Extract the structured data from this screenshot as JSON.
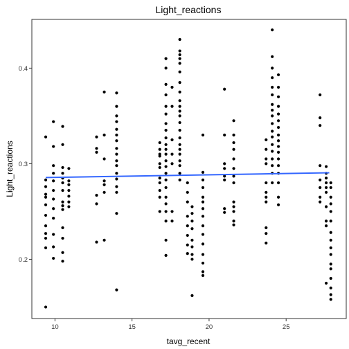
{
  "chart_data": {
    "type": "scatter",
    "title": "Light_reactions",
    "xlabel": "tavg_recent",
    "ylabel": "Light_reactions",
    "xlim": [
      8.5,
      28.9
    ],
    "ylim": [
      0.138,
      0.451
    ],
    "x_ticks": [
      {
        "value": 10,
        "label": "10"
      },
      {
        "value": 15,
        "label": "15"
      },
      {
        "value": 20,
        "label": "20"
      },
      {
        "value": 25,
        "label": "25"
      }
    ],
    "y_ticks": [
      {
        "value": 0.2,
        "label": "0.2"
      },
      {
        "value": 0.3,
        "label": "0.3"
      },
      {
        "value": 0.4,
        "label": "0.4"
      }
    ],
    "grid": false,
    "point_color": "#000000",
    "line_color": "#3366FF",
    "trend_line": {
      "x": [
        9.4,
        27.8
      ],
      "y": [
        0.2855,
        0.2905
      ]
    },
    "series": [
      {
        "points": [
          [
            9.4,
            0.15
          ],
          [
            9.4,
            0.212
          ],
          [
            9.4,
            0.222
          ],
          [
            9.4,
            0.227
          ],
          [
            9.4,
            0.235
          ],
          [
            9.4,
            0.246
          ],
          [
            9.4,
            0.257
          ],
          [
            9.4,
            0.265
          ],
          [
            9.4,
            0.268
          ],
          [
            9.4,
            0.276
          ],
          [
            9.4,
            0.283
          ],
          [
            9.4,
            0.328
          ],
          [
            9.9,
            0.201
          ],
          [
            9.9,
            0.213
          ],
          [
            9.9,
            0.226
          ],
          [
            9.9,
            0.243
          ],
          [
            9.9,
            0.253
          ],
          [
            9.9,
            0.263
          ],
          [
            9.9,
            0.272
          ],
          [
            9.9,
            0.282
          ],
          [
            9.9,
            0.29
          ],
          [
            9.9,
            0.298
          ],
          [
            9.9,
            0.318
          ],
          [
            9.9,
            0.344
          ],
          [
            10.5,
            0.198
          ],
          [
            10.5,
            0.207
          ],
          [
            10.5,
            0.222
          ],
          [
            10.5,
            0.233
          ],
          [
            10.5,
            0.252
          ],
          [
            10.5,
            0.256
          ],
          [
            10.5,
            0.26
          ],
          [
            10.5,
            0.272
          ],
          [
            10.5,
            0.28
          ],
          [
            10.5,
            0.285
          ],
          [
            10.5,
            0.29
          ],
          [
            10.5,
            0.296
          ],
          [
            10.5,
            0.32
          ],
          [
            10.5,
            0.339
          ],
          [
            10.9,
            0.255
          ],
          [
            10.9,
            0.26
          ],
          [
            10.9,
            0.266
          ],
          [
            10.9,
            0.272
          ],
          [
            10.9,
            0.278
          ],
          [
            10.9,
            0.282
          ],
          [
            10.9,
            0.295
          ],
          [
            12.7,
            0.218
          ],
          [
            12.7,
            0.258
          ],
          [
            12.7,
            0.267
          ],
          [
            12.7,
            0.312
          ],
          [
            12.7,
            0.316
          ],
          [
            12.7,
            0.328
          ],
          [
            13.2,
            0.22
          ],
          [
            13.2,
            0.27
          ],
          [
            13.2,
            0.278
          ],
          [
            13.2,
            0.282
          ],
          [
            13.2,
            0.305
          ],
          [
            13.2,
            0.33
          ],
          [
            13.2,
            0.375
          ],
          [
            14,
            0.168
          ],
          [
            14,
            0.248
          ],
          [
            14,
            0.27
          ],
          [
            14,
            0.276
          ],
          [
            14,
            0.284
          ],
          [
            14,
            0.29
          ],
          [
            14,
            0.298
          ],
          [
            14,
            0.303
          ],
          [
            14,
            0.31
          ],
          [
            14,
            0.316
          ],
          [
            14,
            0.324
          ],
          [
            14,
            0.33
          ],
          [
            14,
            0.336
          ],
          [
            14,
            0.344
          ],
          [
            14,
            0.35
          ],
          [
            14,
            0.36
          ],
          [
            14,
            0.374
          ],
          [
            16.8,
            0.25
          ],
          [
            16.8,
            0.265
          ],
          [
            16.8,
            0.272
          ],
          [
            16.8,
            0.28
          ],
          [
            16.8,
            0.285
          ],
          [
            16.8,
            0.296
          ],
          [
            16.8,
            0.3
          ],
          [
            16.8,
            0.308
          ],
          [
            16.8,
            0.315
          ],
          [
            16.8,
            0.322
          ],
          [
            16.8,
            0.31
          ],
          [
            17.2,
            0.204
          ],
          [
            17.2,
            0.22
          ],
          [
            17.2,
            0.24
          ],
          [
            17.2,
            0.25
          ],
          [
            17.2,
            0.258
          ],
          [
            17.2,
            0.265
          ],
          [
            17.2,
            0.275
          ],
          [
            17.2,
            0.283
          ],
          [
            17.2,
            0.29
          ],
          [
            17.2,
            0.297
          ],
          [
            17.2,
            0.303
          ],
          [
            17.2,
            0.31
          ],
          [
            17.2,
            0.315
          ],
          [
            17.2,
            0.32
          ],
          [
            17.2,
            0.327
          ],
          [
            17.2,
            0.335
          ],
          [
            17.2,
            0.342
          ],
          [
            17.2,
            0.352
          ],
          [
            17.2,
            0.36
          ],
          [
            17.2,
            0.372
          ],
          [
            17.2,
            0.383
          ],
          [
            17.2,
            0.4
          ],
          [
            17.2,
            0.41
          ],
          [
            17.6,
            0.24
          ],
          [
            17.6,
            0.25
          ],
          [
            17.6,
            0.3
          ],
          [
            17.6,
            0.31
          ],
          [
            17.6,
            0.325
          ],
          [
            17.6,
            0.36
          ],
          [
            17.6,
            0.38
          ],
          [
            18.1,
            0.283
          ],
          [
            18.1,
            0.29
          ],
          [
            18.1,
            0.298
          ],
          [
            18.1,
            0.303
          ],
          [
            18.1,
            0.31
          ],
          [
            18.1,
            0.315
          ],
          [
            18.1,
            0.32
          ],
          [
            18.1,
            0.327
          ],
          [
            18.1,
            0.335
          ],
          [
            18.1,
            0.343
          ],
          [
            18.1,
            0.35
          ],
          [
            18.1,
            0.355
          ],
          [
            18.1,
            0.36
          ],
          [
            18.1,
            0.366
          ],
          [
            18.1,
            0.375
          ],
          [
            18.1,
            0.385
          ],
          [
            18.1,
            0.396
          ],
          [
            18.1,
            0.405
          ],
          [
            18.1,
            0.41
          ],
          [
            18.1,
            0.414
          ],
          [
            18.1,
            0.418
          ],
          [
            18.1,
            0.43
          ],
          [
            18.6,
            0.206
          ],
          [
            18.6,
            0.215
          ],
          [
            18.6,
            0.225
          ],
          [
            18.6,
            0.235
          ],
          [
            18.6,
            0.245
          ],
          [
            18.6,
            0.26
          ],
          [
            18.6,
            0.27
          ],
          [
            18.6,
            0.28
          ],
          [
            18.9,
            0.162
          ],
          [
            18.9,
            0.2
          ],
          [
            18.9,
            0.205
          ],
          [
            18.9,
            0.213
          ],
          [
            18.9,
            0.22
          ],
          [
            18.9,
            0.232
          ],
          [
            18.9,
            0.24
          ],
          [
            18.9,
            0.248
          ],
          [
            18.9,
            0.255
          ],
          [
            19.6,
            0.183
          ],
          [
            19.6,
            0.187
          ],
          [
            19.6,
            0.196
          ],
          [
            19.6,
            0.205
          ],
          [
            19.6,
            0.216
          ],
          [
            19.6,
            0.226
          ],
          [
            19.6,
            0.235
          ],
          [
            19.6,
            0.245
          ],
          [
            19.6,
            0.253
          ],
          [
            19.6,
            0.26
          ],
          [
            19.6,
            0.265
          ],
          [
            19.6,
            0.275
          ],
          [
            19.6,
            0.283
          ],
          [
            19.6,
            0.291
          ],
          [
            19.6,
            0.33
          ],
          [
            21,
            0.249
          ],
          [
            21,
            0.253
          ],
          [
            21,
            0.283
          ],
          [
            21,
            0.287
          ],
          [
            21,
            0.295
          ],
          [
            21,
            0.3
          ],
          [
            21,
            0.33
          ],
          [
            21,
            0.378
          ],
          [
            21.6,
            0.236
          ],
          [
            21.6,
            0.24
          ],
          [
            21.6,
            0.25
          ],
          [
            21.6,
            0.255
          ],
          [
            21.6,
            0.26
          ],
          [
            21.6,
            0.28
          ],
          [
            21.6,
            0.287
          ],
          [
            21.6,
            0.295
          ],
          [
            21.6,
            0.305
          ],
          [
            21.6,
            0.315
          ],
          [
            21.6,
            0.322
          ],
          [
            21.6,
            0.33
          ],
          [
            21.6,
            0.345
          ],
          [
            23.7,
            0.217
          ],
          [
            23.7,
            0.227
          ],
          [
            23.7,
            0.233
          ],
          [
            23.7,
            0.26
          ],
          [
            23.7,
            0.265
          ],
          [
            23.7,
            0.27
          ],
          [
            23.7,
            0.28
          ],
          [
            23.7,
            0.3
          ],
          [
            23.7,
            0.305
          ],
          [
            23.7,
            0.315
          ],
          [
            23.7,
            0.325
          ],
          [
            24.1,
            0.28
          ],
          [
            24.1,
            0.29
          ],
          [
            24.1,
            0.298
          ],
          [
            24.1,
            0.305
          ],
          [
            24.1,
            0.313
          ],
          [
            24.1,
            0.32
          ],
          [
            24.1,
            0.328
          ],
          [
            24.1,
            0.334
          ],
          [
            24.1,
            0.342
          ],
          [
            24.1,
            0.35
          ],
          [
            24.1,
            0.356
          ],
          [
            24.1,
            0.362
          ],
          [
            24.1,
            0.372
          ],
          [
            24.1,
            0.38
          ],
          [
            24.1,
            0.39
          ],
          [
            24.1,
            0.4
          ],
          [
            24.1,
            0.412
          ],
          [
            24.1,
            0.44
          ],
          [
            24.5,
            0.257
          ],
          [
            24.5,
            0.265
          ],
          [
            24.5,
            0.28
          ],
          [
            24.5,
            0.29
          ],
          [
            24.5,
            0.298
          ],
          [
            24.5,
            0.305
          ],
          [
            24.5,
            0.312
          ],
          [
            24.5,
            0.318
          ],
          [
            24.5,
            0.324
          ],
          [
            24.5,
            0.33
          ],
          [
            24.5,
            0.338
          ],
          [
            24.5,
            0.345
          ],
          [
            24.5,
            0.352
          ],
          [
            24.5,
            0.36
          ],
          [
            24.5,
            0.37
          ],
          [
            24.5,
            0.38
          ],
          [
            24.5,
            0.393
          ],
          [
            27.2,
            0.26
          ],
          [
            27.2,
            0.265
          ],
          [
            27.2,
            0.275
          ],
          [
            27.2,
            0.283
          ],
          [
            27.2,
            0.298
          ],
          [
            27.2,
            0.34
          ],
          [
            27.2,
            0.348
          ],
          [
            27.2,
            0.372
          ],
          [
            27.6,
            0.175
          ],
          [
            27.6,
            0.235
          ],
          [
            27.6,
            0.24
          ],
          [
            27.6,
            0.255
          ],
          [
            27.6,
            0.27
          ],
          [
            27.6,
            0.275
          ],
          [
            27.6,
            0.28
          ],
          [
            27.6,
            0.285
          ],
          [
            27.6,
            0.29
          ],
          [
            27.6,
            0.297
          ],
          [
            27.9,
            0.158
          ],
          [
            27.9,
            0.163
          ],
          [
            27.9,
            0.17
          ],
          [
            27.9,
            0.18
          ],
          [
            27.9,
            0.19
          ],
          [
            27.9,
            0.195
          ],
          [
            27.9,
            0.205
          ],
          [
            27.9,
            0.212
          ],
          [
            27.9,
            0.22
          ],
          [
            27.9,
            0.228
          ],
          [
            27.9,
            0.24
          ],
          [
            27.9,
            0.25
          ],
          [
            27.9,
            0.258
          ],
          [
            27.9,
            0.265
          ],
          [
            27.9,
            0.275
          ],
          [
            27.9,
            0.28
          ]
        ]
      }
    ]
  }
}
